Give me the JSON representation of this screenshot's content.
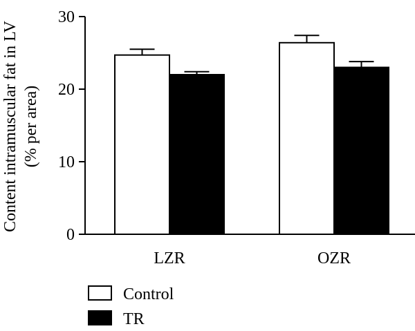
{
  "chart_data": {
    "type": "bar",
    "title": "",
    "xlabel": "",
    "ylabel": [
      "Content intramuscular fat in LV",
      "(% per area)"
    ],
    "categories": [
      "LZR",
      "OZR"
    ],
    "ylim": [
      0,
      30
    ],
    "yticks": [
      "0",
      "10",
      "20",
      "30"
    ],
    "series": [
      {
        "name": "Control",
        "values": [
          24.7,
          26.4
        ],
        "errors": [
          0.8,
          1.0
        ],
        "color": "#ffffff"
      },
      {
        "name": "TR",
        "values": [
          22.0,
          23.0
        ],
        "errors": [
          0.4,
          0.8
        ],
        "color": "#000000"
      }
    ],
    "legend_position": "bottom-left",
    "grid": false
  }
}
